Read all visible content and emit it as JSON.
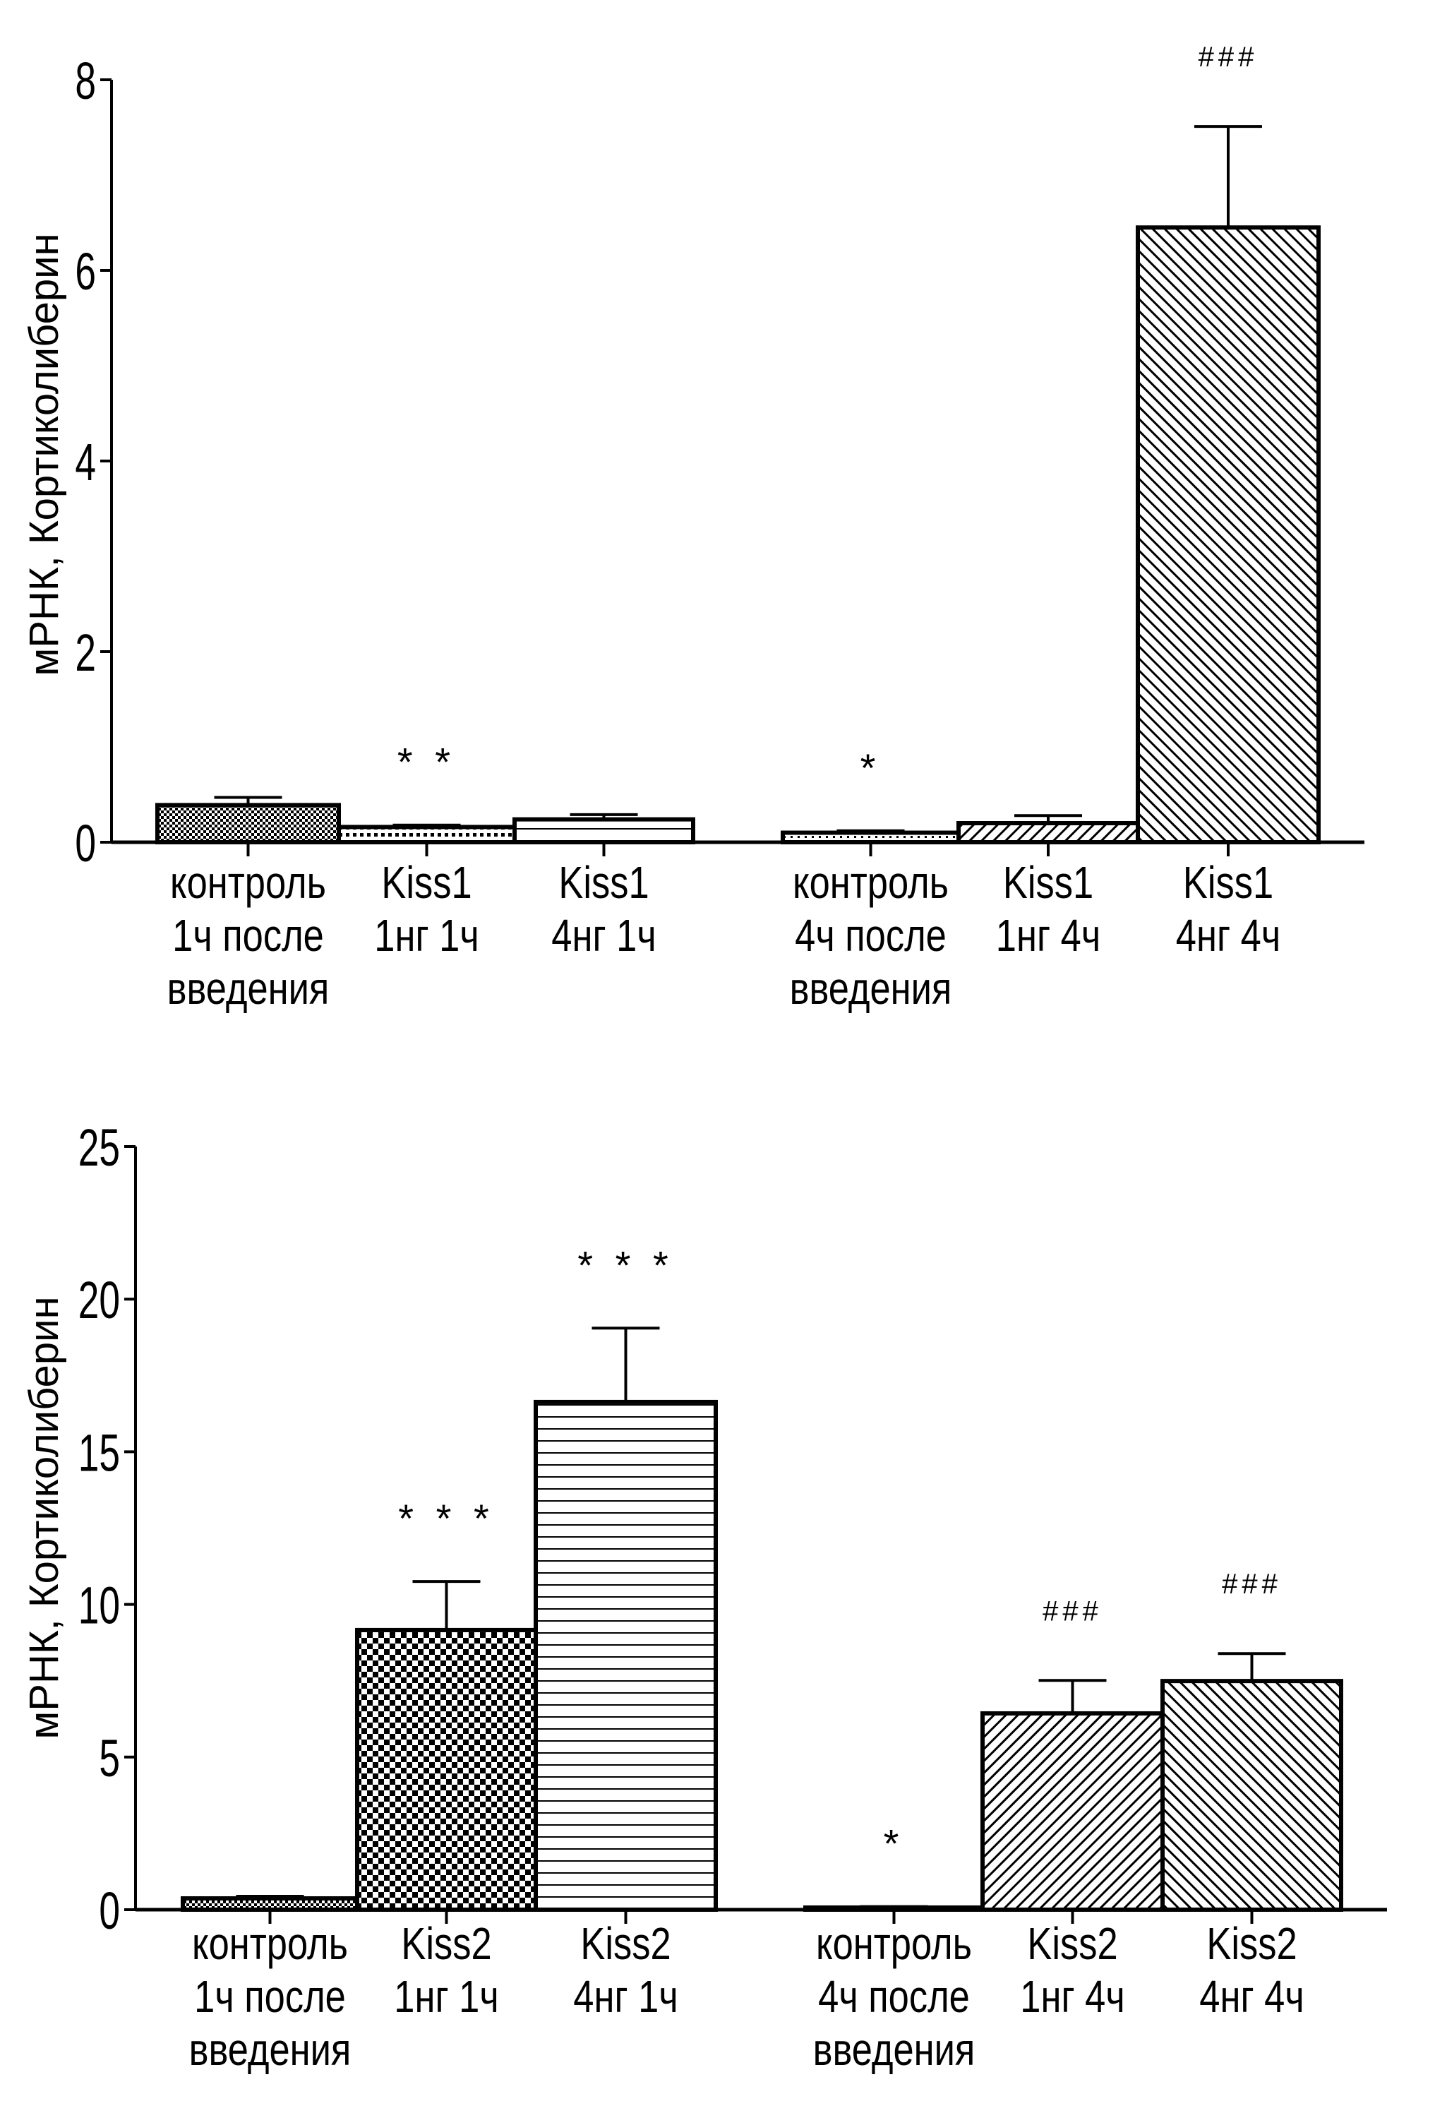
{
  "chart_data": [
    {
      "type": "bar",
      "title": "",
      "xlabel": "",
      "ylabel": "мРНК, Кортиколиберин",
      "ylim": [
        0,
        8
      ],
      "yticks": [
        "0",
        "2",
        "4",
        "6",
        "8"
      ],
      "grid": false,
      "categories": [
        [
          "контроль",
          "1ч после",
          "введения"
        ],
        [
          "Kiss1",
          "1нг 1ч"
        ],
        [
          "Kiss1",
          "4нг 1ч"
        ],
        [
          "контроль",
          "4ч после",
          "введения"
        ],
        [
          "Kiss1",
          "1нг 4ч"
        ],
        [
          "Kiss1",
          "4нг 4ч"
        ]
      ],
      "values": [
        0.39,
        0.16,
        0.24,
        0.1,
        0.2,
        6.45
      ],
      "errors_upper": [
        0.47,
        0.18,
        0.29,
        0.12,
        0.28,
        7.51
      ],
      "patterns": [
        "fine-checker",
        "dots",
        "horizontal-lines",
        "fine-dots",
        "diagonal-forward",
        "diagonal-backward"
      ],
      "annotations": [
        "",
        "* *",
        "",
        "*",
        "",
        "###"
      ]
    },
    {
      "type": "bar",
      "title": "",
      "xlabel": "",
      "ylabel": "мРНК, Кортиколиберин",
      "ylim": [
        0,
        25
      ],
      "yticks": [
        "0",
        "5",
        "10",
        "15",
        "20",
        "25"
      ],
      "grid": false,
      "categories": [
        [
          "контроль",
          "1ч после",
          "введения"
        ],
        [
          "Kiss2",
          "1нг 1ч"
        ],
        [
          "Kiss2",
          "4нг 1ч"
        ],
        [
          "контроль",
          "4ч после",
          "введения"
        ],
        [
          "Kiss2",
          "1нг 4ч"
        ],
        [
          "Kiss2",
          "4нг 4ч"
        ]
      ],
      "values": [
        0.37,
        9.16,
        16.63,
        0.07,
        6.43,
        7.49
      ],
      "errors_upper": [
        0.44,
        10.75,
        19.05,
        0.1,
        7.51,
        8.39
      ],
      "patterns": [
        "fine-checker",
        "checker",
        "horizontal-lines",
        "fine-dots",
        "diagonal-forward",
        "diagonal-backward"
      ],
      "annotations": [
        "",
        "* * *",
        "* * *",
        "*",
        "###",
        "###"
      ]
    }
  ]
}
